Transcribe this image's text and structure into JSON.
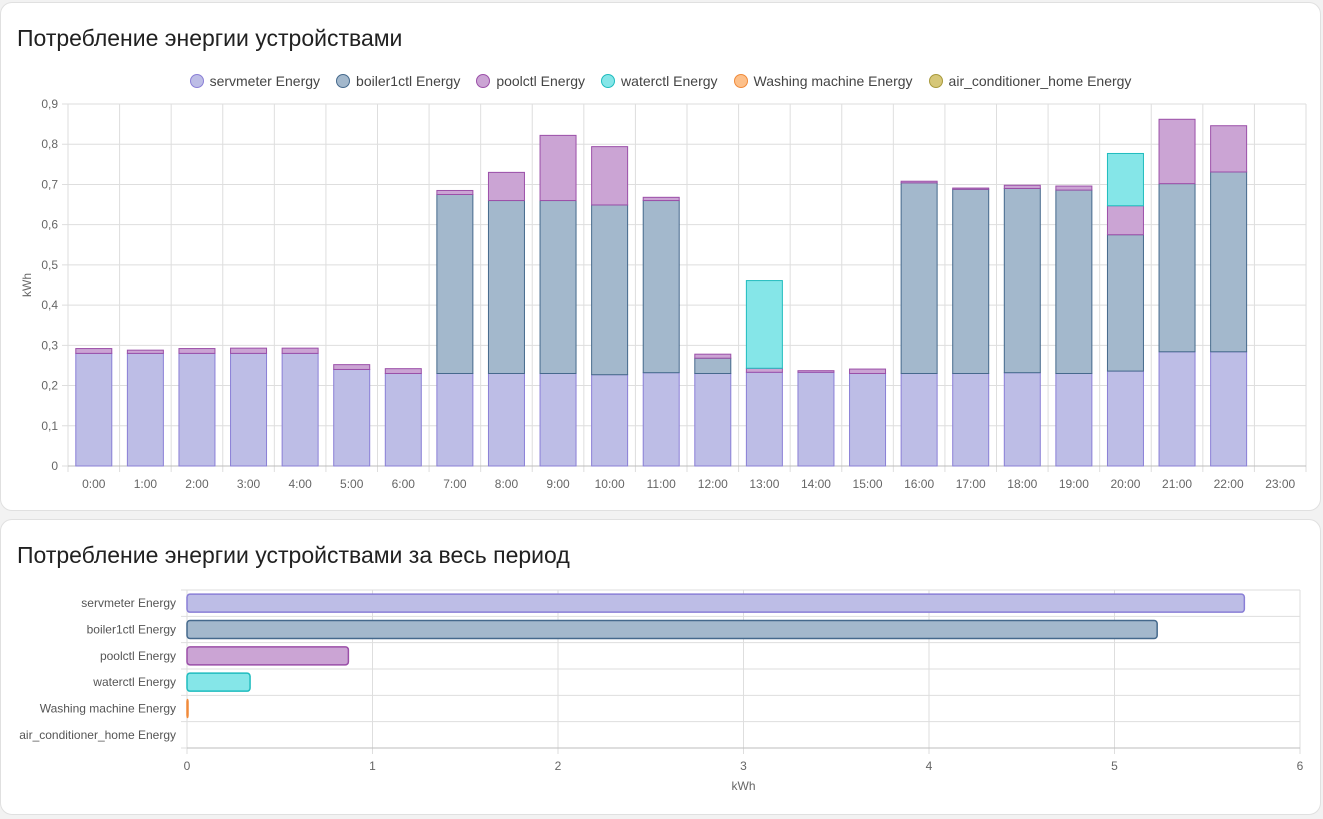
{
  "card1": {
    "title": "Потребление энергии устройствами"
  },
  "card2": {
    "title": "Потребление энергии устройствами за весь период"
  },
  "colors": {
    "servmeter": {
      "fill": "#bdbde6",
      "stroke": "#8a7fd6"
    },
    "boiler1ctl": {
      "fill": "#a3b8cc",
      "stroke": "#45698c"
    },
    "poolctl": {
      "fill": "#cba4d4",
      "stroke": "#9b4fa8"
    },
    "waterctl": {
      "fill": "#85e6e8",
      "stroke": "#1fbcbe"
    },
    "washing": {
      "fill": "#fdc08a",
      "stroke": "#f08a3a"
    },
    "aircon": {
      "fill": "#d6c778",
      "stroke": "#a89a3c"
    }
  },
  "chart_data": [
    {
      "type": "bar",
      "stacked": true,
      "ylabel": "kWh",
      "ylim": [
        0,
        0.9
      ],
      "yticks": [
        "0",
        "0,1",
        "0,2",
        "0,3",
        "0,4",
        "0,5",
        "0,6",
        "0,7",
        "0,8",
        "0,9"
      ],
      "categories": [
        "0:00",
        "1:00",
        "2:00",
        "3:00",
        "4:00",
        "5:00",
        "6:00",
        "7:00",
        "8:00",
        "9:00",
        "10:00",
        "11:00",
        "12:00",
        "13:00",
        "14:00",
        "15:00",
        "16:00",
        "17:00",
        "18:00",
        "19:00",
        "20:00",
        "21:00",
        "22:00",
        "23:00"
      ],
      "legend_position": "top",
      "series": [
        {
          "name": "servmeter Energy",
          "color_key": "servmeter",
          "values": [
            0.28,
            0.28,
            0.28,
            0.28,
            0.28,
            0.24,
            0.23,
            0.23,
            0.23,
            0.23,
            0.227,
            0.232,
            0.23,
            0.233,
            0.233,
            0.23,
            0.23,
            0.23,
            0.232,
            0.23,
            0.236,
            0.284,
            0.284,
            0
          ]
        },
        {
          "name": "boiler1ctl Energy",
          "color_key": "boiler1ctl",
          "values": [
            0,
            0,
            0,
            0,
            0,
            0,
            0,
            0.445,
            0.43,
            0.43,
            0.422,
            0.428,
            0.038,
            0,
            0,
            0,
            0.474,
            0.458,
            0.458,
            0.456,
            0.339,
            0.418,
            0.447,
            0
          ]
        },
        {
          "name": "poolctl Energy",
          "color_key": "poolctl",
          "values": [
            0.012,
            0.008,
            0.012,
            0.013,
            0.013,
            0.012,
            0.012,
            0.01,
            0.07,
            0.162,
            0.145,
            0.008,
            0.01,
            0.01,
            0.004,
            0.011,
            0.004,
            0.003,
            0.008,
            0.01,
            0.072,
            0.16,
            0.115,
            0
          ]
        },
        {
          "name": "waterctl Energy",
          "color_key": "waterctl",
          "values": [
            0,
            0,
            0,
            0,
            0,
            0,
            0,
            0,
            0,
            0,
            0,
            0,
            0,
            0.218,
            0,
            0,
            0,
            0,
            0,
            0,
            0.13,
            0,
            0,
            0
          ]
        },
        {
          "name": "Washing machine Energy",
          "color_key": "washing",
          "values": [
            0,
            0,
            0,
            0,
            0,
            0,
            0,
            0,
            0,
            0,
            0,
            0,
            0,
            0,
            0,
            0,
            0,
            0,
            0,
            0,
            0,
            0,
            0,
            0
          ]
        },
        {
          "name": "air_conditioner_home Energy",
          "color_key": "aircon",
          "values": [
            0,
            0,
            0,
            0,
            0,
            0,
            0,
            0,
            0,
            0,
            0,
            0,
            0,
            0,
            0,
            0,
            0,
            0,
            0,
            0,
            0,
            0,
            0,
            0
          ]
        }
      ]
    },
    {
      "type": "bar",
      "orientation": "horizontal",
      "xlabel": "kWh",
      "xlim": [
        0,
        6
      ],
      "xticks": [
        "0",
        "1",
        "2",
        "3",
        "4",
        "5",
        "6"
      ],
      "categories": [
        "servmeter Energy",
        "boiler1ctl Energy",
        "poolctl Energy",
        "waterctl Energy",
        "Washing machine Energy",
        "air_conditioner_home Energy"
      ],
      "color_keys": [
        "servmeter",
        "boiler1ctl",
        "poolctl",
        "waterctl",
        "washing",
        "aircon"
      ],
      "values": [
        5.7,
        5.23,
        0.87,
        0.34,
        0.005,
        0
      ]
    }
  ]
}
